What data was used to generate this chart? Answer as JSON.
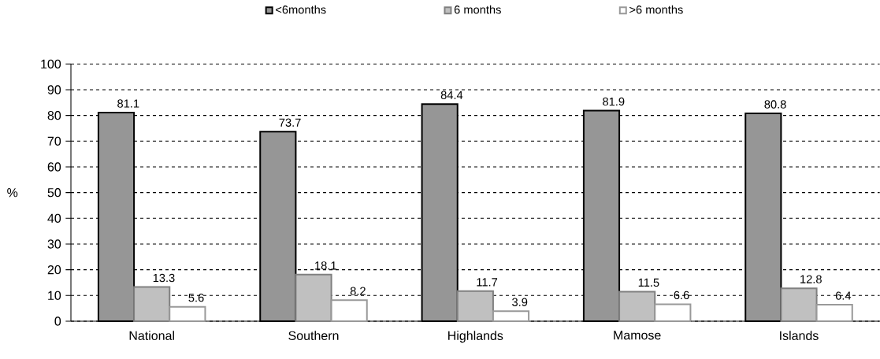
{
  "chart_data": {
    "type": "bar",
    "ylabel": "%",
    "categories": [
      "National",
      "Southern",
      "Highlands",
      "Mamose",
      "Islands"
    ],
    "series": [
      {
        "name": "<6months",
        "color": "#969696",
        "values": [
          81.1,
          73.7,
          84.4,
          81.9,
          80.8
        ]
      },
      {
        "name": "6 months",
        "color": "#c0c0c0",
        "values": [
          13.3,
          18.1,
          11.7,
          11.5,
          12.8
        ]
      },
      {
        "name": ">6 months",
        "color": "#ffffff",
        "values": [
          5.6,
          8.2,
          3.9,
          6.6,
          6.4
        ]
      }
    ],
    "ylim": [
      0,
      100
    ],
    "yticks": [
      0,
      10,
      20,
      30,
      40,
      50,
      60,
      70,
      80,
      90,
      100
    ],
    "grid": "y",
    "legend": "top",
    "data_labels": true
  }
}
